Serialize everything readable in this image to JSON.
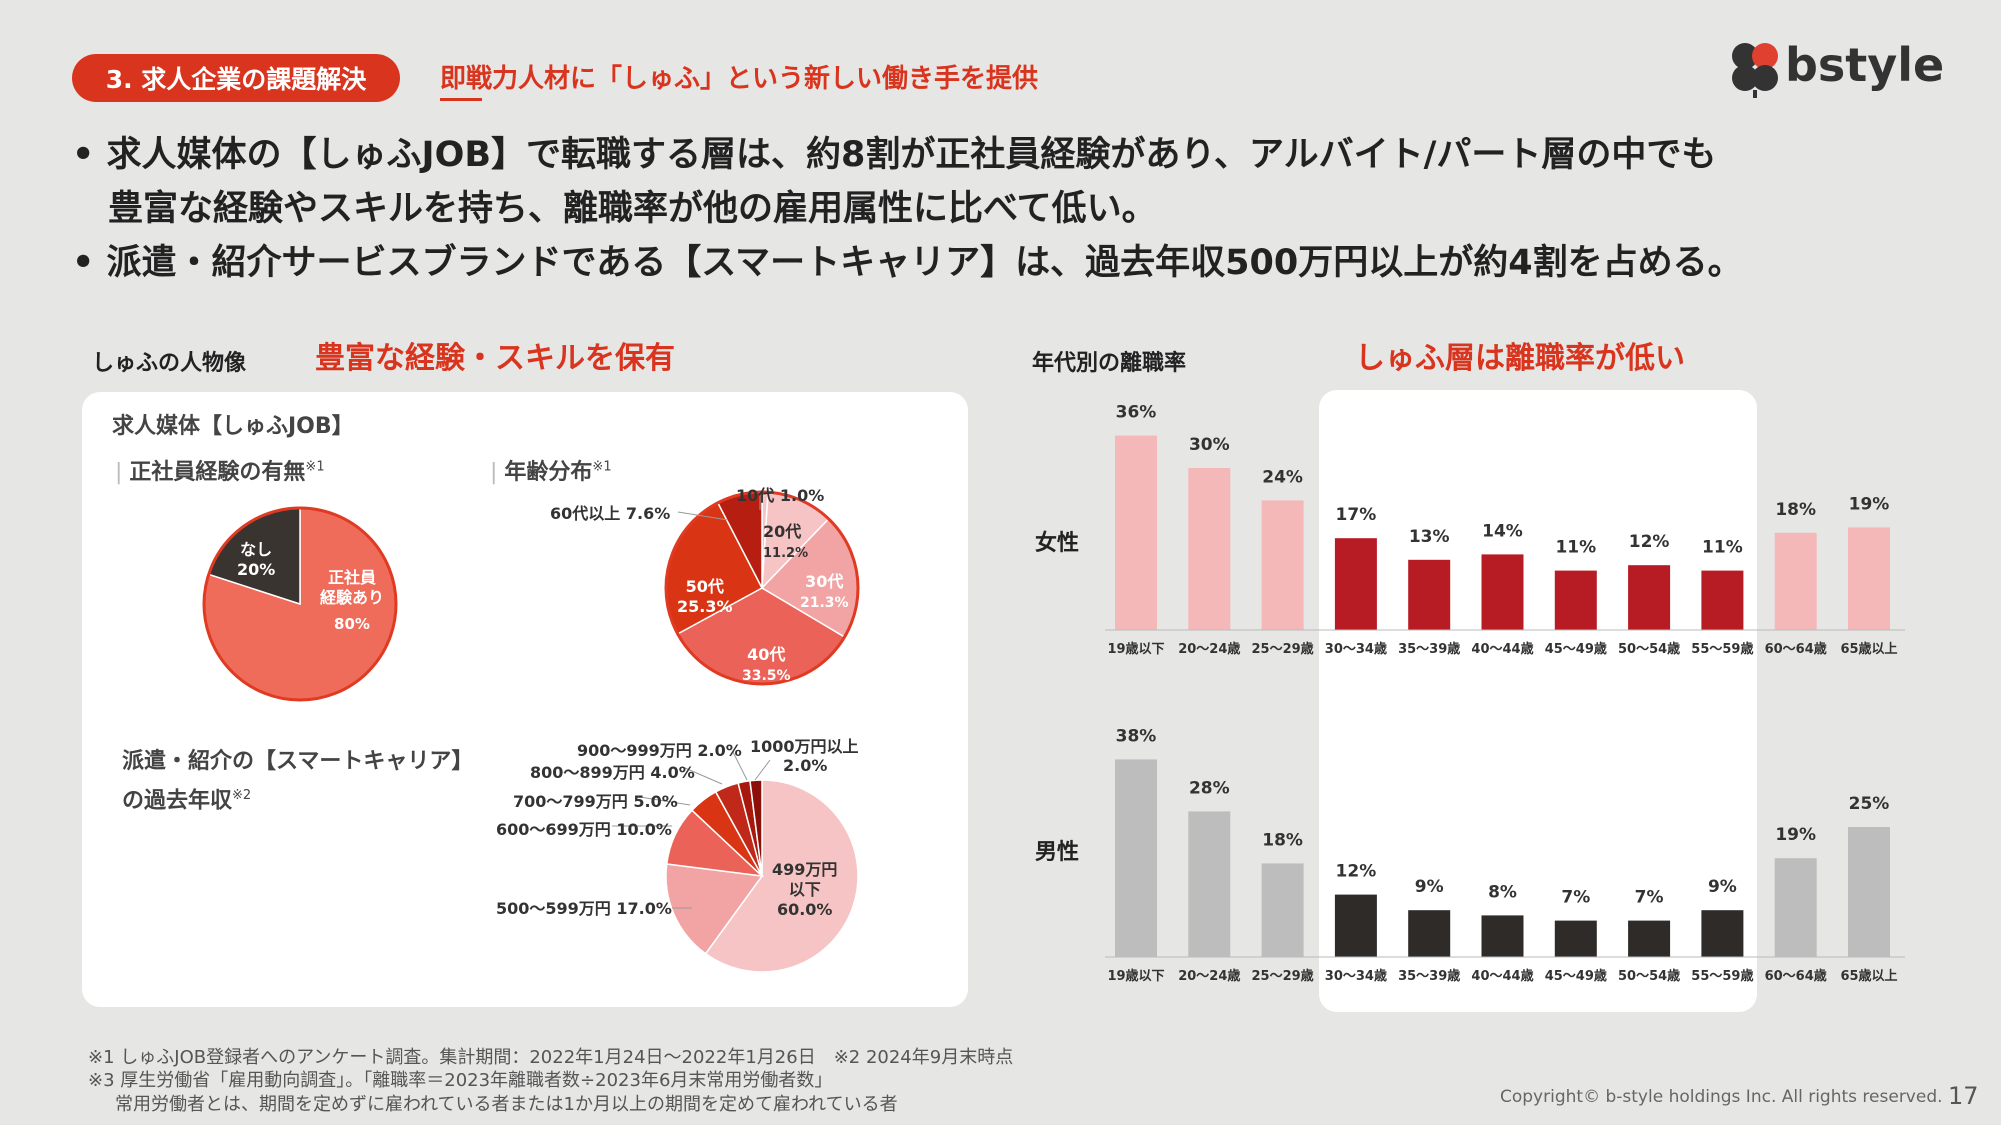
{
  "header": {
    "section_label": "3. 求人企業の課題解決",
    "subtitle": "即戦力人材に「しゅふ」という新しい働き手を提供",
    "logo_text": "bstyle"
  },
  "bullets": [
    "•  求人媒体の【しゅふJOB】で転職する層は、約8割が正社員経験があり、アルバイト/パート層の中でも",
    "豊富な経験やスキルを持ち、離職率が他の雇用属性に比べて低い。",
    "•  派遣・紹介サービスブランドである【スマートキャリア】は、過去年収500万円以上が約4割を占める。"
  ],
  "left": {
    "section_title": "しゅふの人物像",
    "accent_title": "豊富な経験・スキルを保有",
    "panel_title": "求人媒体【しゅふJOB】",
    "pie1_title": "正社員経験の有無",
    "pie2_title": "年齢分布",
    "pie3_title_line1": "派遣・紹介の【スマートキャリア】",
    "pie3_title_line2": "の過去年収",
    "note1": "※1",
    "note2": "※2"
  },
  "right": {
    "section_title": "年代別の離職率",
    "accent_title": "しゅふ層は離職率が低い"
  },
  "colors": {
    "accent": "#d9341e",
    "female_light": "#f4b8b8",
    "female_dark": "#b71c24",
    "male_light": "#bdbdbd",
    "male_dark": "#2e2b28"
  },
  "chart_data": [
    {
      "type": "pie",
      "title": "正社員経験の有無",
      "slices": [
        {
          "label": "正社員経験あり",
          "value": 80,
          "display": "80%"
        },
        {
          "label": "なし",
          "value": 20,
          "display": "20%"
        }
      ]
    },
    {
      "type": "pie",
      "title": "年齢分布",
      "slices": [
        {
          "label": "10代",
          "value": 1.0,
          "display": "1.0%"
        },
        {
          "label": "20代",
          "value": 11.2,
          "display": "11.2%"
        },
        {
          "label": "30代",
          "value": 21.3,
          "display": "21.3%"
        },
        {
          "label": "40代",
          "value": 33.5,
          "display": "33.5%"
        },
        {
          "label": "50代",
          "value": 25.3,
          "display": "25.3%"
        },
        {
          "label": "60代以上",
          "value": 7.6,
          "display": "7.6%"
        }
      ]
    },
    {
      "type": "pie",
      "title": "派遣・紹介の【スマートキャリア】の過去年収",
      "slices": [
        {
          "label": "499万円以下",
          "value": 60.0,
          "display": "60.0%"
        },
        {
          "label": "500〜599万円",
          "value": 17.0,
          "display": "17.0%"
        },
        {
          "label": "600〜699万円",
          "value": 10.0,
          "display": "10.0%"
        },
        {
          "label": "700〜799万円",
          "value": 5.0,
          "display": "5.0%"
        },
        {
          "label": "800〜899万円",
          "value": 4.0,
          "display": "4.0%"
        },
        {
          "label": "900〜999万円",
          "value": 2.0,
          "display": "2.0%"
        },
        {
          "label": "1000万円以上",
          "value": 2.0,
          "display": "2.0%"
        }
      ]
    },
    {
      "type": "bar",
      "title": "女性",
      "categories": [
        "19歳以下",
        "20〜24歳",
        "25〜29歳",
        "30〜34歳",
        "35〜39歳",
        "40〜44歳",
        "45〜49歳",
        "50〜54歳",
        "55〜59歳",
        "60〜64歳",
        "65歳以上"
      ],
      "values": [
        36,
        30,
        24,
        17,
        13,
        14,
        11,
        12,
        11,
        18,
        19
      ],
      "labels": [
        "36%",
        "30%",
        "24%",
        "17%",
        "13%",
        "14%",
        "11%",
        "12%",
        "11%",
        "18%",
        "19%"
      ],
      "highlight_range": [
        "30〜34歳",
        "55〜59歳"
      ]
    },
    {
      "type": "bar",
      "title": "男性",
      "categories": [
        "19歳以下",
        "20〜24歳",
        "25〜29歳",
        "30〜34歳",
        "35〜39歳",
        "40〜44歳",
        "45〜49歳",
        "50〜54歳",
        "55〜59歳",
        "60〜64歳",
        "65歳以上"
      ],
      "values": [
        38,
        28,
        18,
        12,
        9,
        8,
        7,
        7,
        9,
        19,
        25
      ],
      "labels": [
        "38%",
        "28%",
        "18%",
        "12%",
        "9%",
        "8%",
        "7%",
        "7%",
        "9%",
        "19%",
        "25%"
      ],
      "highlight_range": [
        "30〜34歳",
        "55〜59歳"
      ]
    }
  ],
  "footer": {
    "line1": "※1 しゅふJOB登録者へのアンケート調査。集計期間：2022年1月24日〜2022年1月26日　※2 2024年9月末時点",
    "line2": "※3 厚生労働省「雇用動向調査」。「離職率＝2023年離職者数÷2023年6月末常用労働者数」",
    "line3": "常用労働者とは、期間を定めずに雇われている者または1か月以上の期間を定めて雇われている者",
    "copyright": "Copyright© b-style holdings Inc. All rights reserved.",
    "page_number": "17"
  }
}
